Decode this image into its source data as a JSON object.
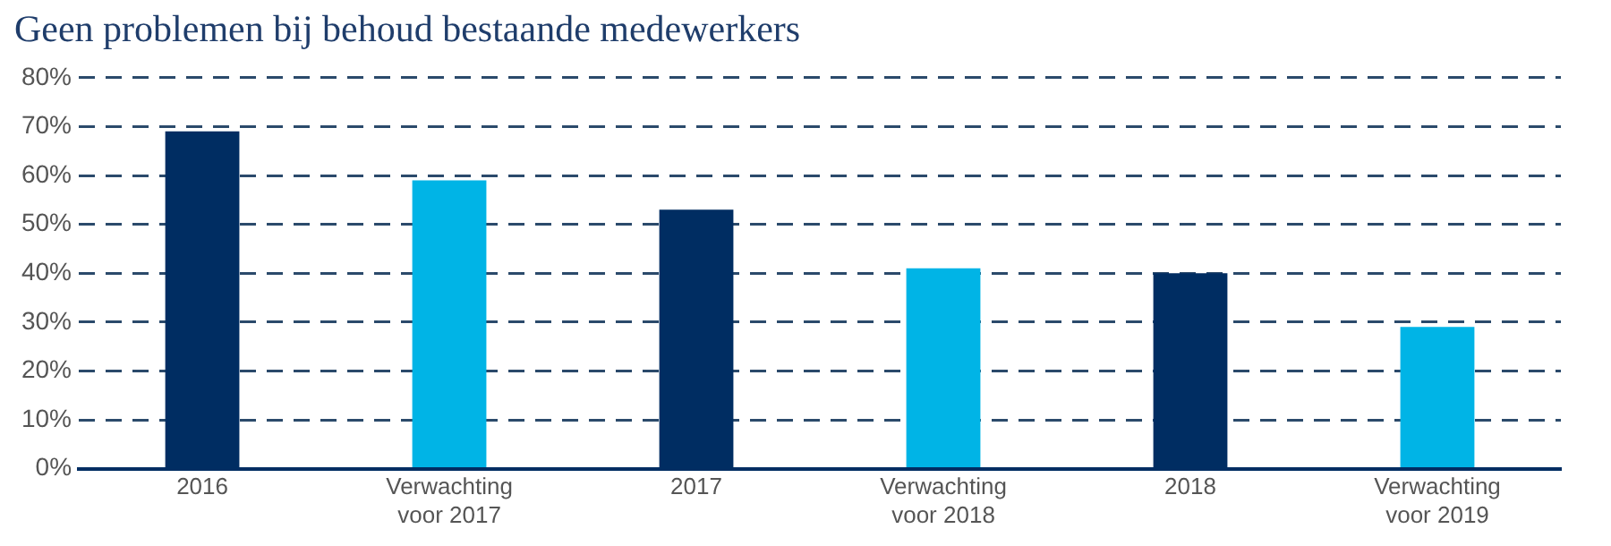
{
  "chart_data": {
    "type": "bar",
    "title": "Geen problemen bij behoud bestaande medewerkers",
    "categories": [
      "2016",
      "Verwachting voor 2017",
      "2017",
      "Verwachting voor 2018",
      "2018",
      "Verwachting voor 2019"
    ],
    "values": [
      69,
      59,
      53,
      41,
      40,
      29
    ],
    "colors": [
      "#002d62",
      "#00b4e6",
      "#002d62",
      "#00b4e6",
      "#002d62",
      "#00b4e6"
    ],
    "ylim": [
      0,
      80
    ],
    "yticks": [
      {
        "value": 0,
        "label": "0%"
      },
      {
        "value": 10,
        "label": "10%"
      },
      {
        "value": 20,
        "label": "20%"
      },
      {
        "value": 30,
        "label": "30%"
      },
      {
        "value": 40,
        "label": "40%"
      },
      {
        "value": 50,
        "label": "50%"
      },
      {
        "value": 60,
        "label": "60%"
      },
      {
        "value": 70,
        "label": "70%"
      },
      {
        "value": 80,
        "label": "80%"
      }
    ],
    "grid": "y",
    "legend": false
  }
}
